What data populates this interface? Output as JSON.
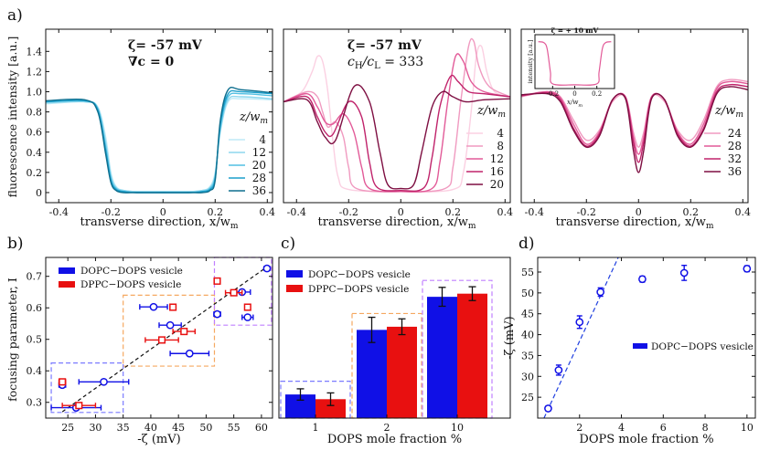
{
  "figure": {
    "panel_labels": {
      "a": "a)",
      "b": "b)",
      "c": "c)",
      "d": "d)"
    },
    "colors": {
      "cyan": [
        "#bfeaf7",
        "#8dd7ee",
        "#52c0e3",
        "#1b9fcb",
        "#0e6f8f"
      ],
      "pink": [
        "#fbd0e2",
        "#f09ac0",
        "#e25a98",
        "#c0236b",
        "#7e0f42"
      ],
      "blue": "#1010e6",
      "red": "#e81010",
      "blue_box": "#7a7aff",
      "orange_box": "#f5a860",
      "purple_box": "#c080ff",
      "fit_blue": "#1f3fe0"
    }
  },
  "chart_data": [
    {
      "id": "a1",
      "type": "line",
      "xlabel": "transverse direction, x/w",
      "xlabel_sub": "m",
      "ylabel": "fluorescence intensity [a.u.]",
      "xlim": [
        -0.45,
        0.42
      ],
      "ylim": [
        -0.1,
        1.62
      ],
      "xticks": [
        "-0.4",
        "-0.2",
        "0",
        "0.2",
        "0.4"
      ],
      "xtick_values": [
        -0.4,
        -0.2,
        0,
        0.2,
        0.4
      ],
      "yticks": [
        "0",
        "0.2",
        "0.4",
        "0.6",
        "0.8",
        "1.0",
        "1.2",
        "1.4"
      ],
      "ytick_values": [
        0,
        0.2,
        0.4,
        0.6,
        0.8,
        1.0,
        1.2,
        1.4
      ],
      "annotations": [
        "ζ= -57 mV",
        "∇c = 0"
      ],
      "legend_title": "z/w",
      "legend_title_sub": "m",
      "series": [
        {
          "name": "4",
          "x": [
            -0.45,
            -0.3,
            -0.25,
            -0.22,
            -0.2,
            -0.18,
            -0.15,
            -0.1,
            0,
            0.1,
            0.15,
            0.18,
            0.2,
            0.22,
            0.25,
            0.3,
            0.42
          ],
          "y": [
            0.88,
            0.9,
            0.85,
            0.55,
            0.2,
            0.06,
            0.02,
            0.01,
            0.01,
            0.01,
            0.02,
            0.06,
            0.2,
            0.6,
            0.9,
            0.93,
            0.92
          ]
        },
        {
          "name": "12",
          "x": [
            -0.45,
            -0.3,
            -0.25,
            -0.22,
            -0.2,
            -0.18,
            -0.15,
            -0.1,
            0,
            0.1,
            0.15,
            0.18,
            0.2,
            0.22,
            0.25,
            0.3,
            0.42
          ],
          "y": [
            0.89,
            0.9,
            0.84,
            0.5,
            0.17,
            0.05,
            0.02,
            0.01,
            0.01,
            0.01,
            0.02,
            0.05,
            0.18,
            0.62,
            0.92,
            0.95,
            0.93
          ]
        },
        {
          "name": "20",
          "x": [
            -0.45,
            -0.3,
            -0.25,
            -0.22,
            -0.2,
            -0.18,
            -0.15,
            -0.1,
            0,
            0.1,
            0.15,
            0.18,
            0.2,
            0.22,
            0.25,
            0.3,
            0.42
          ],
          "y": [
            0.9,
            0.91,
            0.83,
            0.45,
            0.14,
            0.04,
            0.01,
            0.0,
            0.0,
            0.0,
            0.01,
            0.04,
            0.16,
            0.65,
            0.95,
            0.98,
            0.96
          ]
        },
        {
          "name": "28",
          "x": [
            -0.45,
            -0.3,
            -0.25,
            -0.22,
            -0.2,
            -0.18,
            -0.15,
            -0.1,
            0,
            0.1,
            0.15,
            0.18,
            0.2,
            0.22,
            0.25,
            0.3,
            0.42
          ],
          "y": [
            0.9,
            0.91,
            0.82,
            0.42,
            0.12,
            0.03,
            0.01,
            0.0,
            0.0,
            0.0,
            0.01,
            0.03,
            0.14,
            0.68,
            0.98,
            1.0,
            0.98
          ]
        },
        {
          "name": "36",
          "x": [
            -0.45,
            -0.3,
            -0.25,
            -0.22,
            -0.2,
            -0.18,
            -0.15,
            -0.1,
            0,
            0.1,
            0.15,
            0.18,
            0.2,
            0.22,
            0.25,
            0.3,
            0.42
          ],
          "y": [
            0.91,
            0.92,
            0.8,
            0.38,
            0.1,
            0.02,
            0.0,
            0.0,
            0.0,
            0.0,
            0.0,
            0.02,
            0.12,
            0.72,
            1.02,
            1.02,
            0.99
          ]
        }
      ]
    },
    {
      "id": "a2",
      "type": "line",
      "xlabel": "transverse direction, x/w",
      "xlabel_sub": "m",
      "xlim": [
        -0.45,
        0.42
      ],
      "ylim": [
        -0.1,
        1.62
      ],
      "xticks": [
        "-0.4",
        "-0.2",
        "0",
        "0.2",
        "0.4"
      ],
      "xtick_values": [
        -0.4,
        -0.2,
        0,
        0.2,
        0.4
      ],
      "annotations": [
        "ζ= -57 mV",
        "c",
        "H",
        "/c",
        "L",
        " = 333"
      ],
      "legend_title": "z/w",
      "legend_title_sub": "m",
      "series": [
        {
          "name": "4",
          "x": [
            -0.45,
            -0.38,
            -0.34,
            -0.32,
            -0.3,
            -0.28,
            -0.26,
            -0.24,
            -0.2,
            0,
            0.2,
            0.24,
            0.27,
            0.29,
            0.31,
            0.33,
            0.36,
            0.42
          ],
          "y": [
            0.9,
            1.0,
            1.2,
            1.35,
            1.3,
            1.0,
            0.5,
            0.15,
            0.03,
            0.01,
            0.03,
            0.2,
            0.8,
            1.35,
            1.45,
            1.2,
            1.0,
            0.95
          ]
        },
        {
          "name": "8",
          "x": [
            -0.45,
            -0.36,
            -0.32,
            -0.3,
            -0.28,
            -0.25,
            -0.22,
            -0.2,
            -0.17,
            0,
            0.17,
            0.2,
            0.23,
            0.26,
            0.28,
            0.3,
            0.34,
            0.42
          ],
          "y": [
            0.9,
            1.0,
            0.95,
            0.8,
            0.65,
            0.7,
            0.55,
            0.25,
            0.04,
            0.01,
            0.04,
            0.25,
            0.9,
            1.45,
            1.5,
            1.25,
            1.05,
            0.95
          ]
        },
        {
          "name": "12",
          "x": [
            -0.45,
            -0.36,
            -0.32,
            -0.29,
            -0.26,
            -0.22,
            -0.18,
            -0.15,
            -0.12,
            0,
            0.12,
            0.15,
            0.18,
            0.21,
            0.24,
            0.27,
            0.32,
            0.42
          ],
          "y": [
            0.9,
            0.98,
            0.85,
            0.7,
            0.68,
            0.78,
            0.6,
            0.25,
            0.04,
            0.01,
            0.04,
            0.3,
            0.9,
            1.35,
            1.3,
            1.1,
            1.0,
            0.95
          ]
        },
        {
          "name": "16",
          "x": [
            -0.45,
            -0.36,
            -0.32,
            -0.29,
            -0.26,
            -0.2,
            -0.15,
            -0.12,
            -0.09,
            0,
            0.09,
            0.12,
            0.15,
            0.19,
            0.22,
            0.26,
            0.32,
            0.42
          ],
          "y": [
            0.9,
            0.95,
            0.75,
            0.6,
            0.58,
            0.9,
            0.75,
            0.3,
            0.05,
            0.02,
            0.05,
            0.35,
            0.85,
            1.15,
            1.1,
            1.0,
            0.98,
            0.95
          ]
        },
        {
          "name": "20",
          "x": [
            -0.45,
            -0.36,
            -0.32,
            -0.29,
            -0.25,
            -0.18,
            -0.12,
            -0.08,
            -0.05,
            0,
            0.05,
            0.08,
            0.12,
            0.16,
            0.2,
            0.25,
            0.32,
            0.42
          ],
          "y": [
            0.9,
            0.92,
            0.7,
            0.55,
            0.52,
            1.05,
            0.9,
            0.4,
            0.08,
            0.04,
            0.08,
            0.4,
            0.85,
            1.0,
            0.95,
            0.9,
            0.92,
            0.93
          ]
        }
      ]
    },
    {
      "id": "a3",
      "type": "line",
      "xlabel": "transverse direction, x/w",
      "xlabel_sub": "m",
      "xlim": [
        -0.45,
        0.42
      ],
      "ylim": [
        -0.1,
        1.62
      ],
      "xticks": [
        "-0.4",
        "-0.2",
        "0",
        "0.2",
        "0.4"
      ],
      "xtick_values": [
        -0.4,
        -0.2,
        0,
        0.2,
        0.4
      ],
      "legend_title": "z/w",
      "legend_title_sub": "m",
      "inset": {
        "title": "ζ = + 10 mV",
        "ylabel": "intensity [a.u.]",
        "xlabel": "x/w",
        "xlabel_sub": "m",
        "xticks": [
          "-0.2",
          "0",
          "0.2"
        ],
        "xtick_values": [
          -0.2,
          0,
          0.2
        ],
        "x": [
          -0.33,
          -0.28,
          -0.25,
          -0.22,
          -0.2,
          0,
          0.2,
          0.22,
          0.25,
          0.28,
          0.33
        ],
        "y": [
          1.0,
          0.98,
          0.85,
          0.35,
          0.1,
          0.08,
          0.1,
          0.35,
          0.85,
          0.98,
          1.0
        ]
      },
      "series": [
        {
          "name": "24",
          "x": [
            -0.45,
            -0.35,
            -0.3,
            -0.25,
            -0.2,
            -0.15,
            -0.1,
            -0.05,
            -0.02,
            0,
            0.02,
            0.05,
            0.1,
            0.15,
            0.2,
            0.25,
            0.3,
            0.35,
            0.42
          ],
          "y": [
            0.95,
            1.0,
            0.95,
            0.72,
            0.52,
            0.62,
            0.9,
            0.95,
            0.6,
            0.45,
            0.6,
            0.95,
            0.9,
            0.62,
            0.52,
            0.72,
            1.05,
            1.12,
            1.1
          ]
        },
        {
          "name": "28",
          "x": [
            -0.45,
            -0.35,
            -0.3,
            -0.25,
            -0.2,
            -0.15,
            -0.1,
            -0.05,
            -0.02,
            0,
            0.02,
            0.05,
            0.1,
            0.15,
            0.2,
            0.25,
            0.3,
            0.35,
            0.42
          ],
          "y": [
            0.96,
            1.0,
            0.94,
            0.68,
            0.48,
            0.6,
            0.92,
            0.95,
            0.55,
            0.38,
            0.55,
            0.95,
            0.92,
            0.6,
            0.48,
            0.68,
            1.03,
            1.1,
            1.08
          ]
        },
        {
          "name": "32",
          "x": [
            -0.45,
            -0.35,
            -0.3,
            -0.25,
            -0.2,
            -0.15,
            -0.1,
            -0.05,
            -0.02,
            0,
            0.02,
            0.05,
            0.1,
            0.15,
            0.2,
            0.25,
            0.3,
            0.35,
            0.42
          ],
          "y": [
            0.96,
            0.99,
            0.92,
            0.64,
            0.46,
            0.58,
            0.92,
            0.94,
            0.5,
            0.3,
            0.5,
            0.94,
            0.92,
            0.58,
            0.46,
            0.64,
            1.0,
            1.07,
            1.05
          ]
        },
        {
          "name": "36",
          "x": [
            -0.45,
            -0.35,
            -0.3,
            -0.25,
            -0.2,
            -0.15,
            -0.1,
            -0.05,
            -0.02,
            0,
            0.02,
            0.05,
            0.1,
            0.15,
            0.2,
            0.25,
            0.3,
            0.35,
            0.42
          ],
          "y": [
            0.97,
            0.98,
            0.9,
            0.62,
            0.45,
            0.56,
            0.92,
            0.93,
            0.42,
            0.2,
            0.42,
            0.93,
            0.92,
            0.56,
            0.45,
            0.62,
            0.98,
            1.05,
            1.02
          ]
        }
      ]
    },
    {
      "id": "b",
      "type": "scatter",
      "xlabel": "-ζ (mV)",
      "ylabel": "focusing parameter, I",
      "xlim": [
        21,
        62
      ],
      "ylim": [
        0.25,
        0.76
      ],
      "xticks": [
        "25",
        "30",
        "35",
        "40",
        "45",
        "50",
        "55",
        "60"
      ],
      "xtick_values": [
        25,
        30,
        35,
        40,
        45,
        50,
        55,
        60
      ],
      "yticks": [
        "0.3",
        "0.4",
        "0.5",
        "0.6",
        "0.7"
      ],
      "ytick_values": [
        0.3,
        0.4,
        0.5,
        0.6,
        0.7
      ],
      "legend": [
        "DOPC−DOPS vesicle",
        "DPPC−DOPS vesicle"
      ],
      "fit_line": {
        "x": [
          24,
          61
        ],
        "y": [
          0.27,
          0.73
        ]
      },
      "boxes": [
        {
          "x": [
            22,
            35
          ],
          "y": [
            0.268,
            0.425
          ],
          "color": "blue_box"
        },
        {
          "x": [
            35,
            51.5
          ],
          "y": [
            0.415,
            0.64
          ],
          "color": "orange_box"
        },
        {
          "x": [
            51.5,
            61.8
          ],
          "y": [
            0.545,
            0.76
          ],
          "color": "purple_box"
        }
      ],
      "series": [
        {
          "name": "DOPC−DOPS vesicle",
          "marker": "circle",
          "points": [
            {
              "x": 24,
              "y": 0.355,
              "xerr": 0.6
            },
            {
              "x": 26.5,
              "y": 0.283,
              "xerr": 4.5
            },
            {
              "x": 31.5,
              "y": 0.365,
              "xerr": 4.5
            },
            {
              "x": 40.5,
              "y": 0.603,
              "xerr": 2.5
            },
            {
              "x": 43.5,
              "y": 0.545,
              "xerr": 2.0
            },
            {
              "x": 47,
              "y": 0.455,
              "xerr": 3.5
            },
            {
              "x": 52,
              "y": 0.58,
              "xerr": 0.6
            },
            {
              "x": 57.5,
              "y": 0.57,
              "xerr": 1.0
            },
            {
              "x": 56.5,
              "y": 0.65,
              "xerr": 1.5
            },
            {
              "x": 61,
              "y": 0.725,
              "xerr": 0.5
            }
          ]
        },
        {
          "name": "DPPC−DOPS vesicle",
          "marker": "square",
          "points": [
            {
              "x": 24,
              "y": 0.365,
              "xerr": 0.6
            },
            {
              "x": 27,
              "y": 0.29,
              "xerr": 3.0
            },
            {
              "x": 42,
              "y": 0.498,
              "xerr": 3.0
            },
            {
              "x": 44,
              "y": 0.602,
              "xerr": 0.4
            },
            {
              "x": 46,
              "y": 0.525,
              "xerr": 2.0
            },
            {
              "x": 52,
              "y": 0.685,
              "xerr": 0.5
            },
            {
              "x": 55,
              "y": 0.648,
              "xerr": 1.5
            },
            {
              "x": 57.5,
              "y": 0.602,
              "xerr": 0.5
            }
          ]
        }
      ]
    },
    {
      "id": "c",
      "type": "bar",
      "xlabel": "DOPS mole fraction %",
      "categories": [
        "1",
        "2",
        "10"
      ],
      "ylim": [
        0.25,
        0.76
      ],
      "legend": [
        "DOPC−DOPS vesicle",
        "DPPC−DOPS vesicle"
      ],
      "series": [
        {
          "name": "DOPC−DOPS vesicle",
          "values": [
            0.325,
            0.53,
            0.635
          ],
          "err": [
            0.018,
            0.04,
            0.03
          ]
        },
        {
          "name": "DPPC−DOPS vesicle",
          "values": [
            0.31,
            0.54,
            0.645
          ],
          "err": [
            0.02,
            0.025,
            0.022
          ]
        }
      ]
    },
    {
      "id": "d",
      "type": "scatter",
      "xlabel": "DOPS mole fraction %",
      "ylabel": "-ζ (mV)",
      "xlim": [
        0,
        10.4
      ],
      "ylim": [
        20,
        58.5
      ],
      "xticks": [
        "2",
        "4",
        "6",
        "8",
        "10"
      ],
      "xtick_values": [
        2,
        4,
        6,
        8,
        10
      ],
      "yticks": [
        "25",
        "30",
        "35",
        "40",
        "45",
        "50",
        "55"
      ],
      "ytick_values": [
        25,
        30,
        35,
        40,
        45,
        50,
        55
      ],
      "legend": [
        "DOPC−DOPS vesicle"
      ],
      "fit_line": {
        "x": [
          0.3,
          3.85
        ],
        "y": [
          20,
          58.5
        ]
      },
      "points": [
        {
          "x": 0.5,
          "y": 22.3,
          "yerr": 0.6
        },
        {
          "x": 1,
          "y": 31.5,
          "yerr": 1.2
        },
        {
          "x": 2,
          "y": 43,
          "yerr": 1.5
        },
        {
          "x": 3,
          "y": 50.2,
          "yerr": 1.0
        },
        {
          "x": 5,
          "y": 53.3,
          "yerr": 0.7
        },
        {
          "x": 7,
          "y": 54.8,
          "yerr": 1.8
        },
        {
          "x": 10,
          "y": 55.8,
          "yerr": 0.7
        }
      ]
    }
  ]
}
